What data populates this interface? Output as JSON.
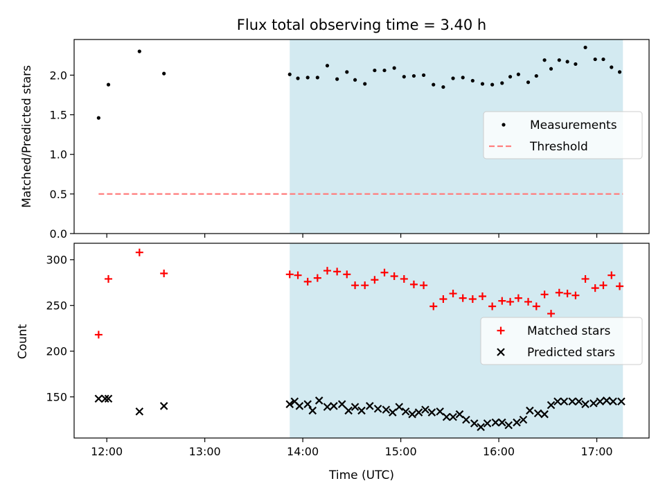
{
  "figure": {
    "title": "Flux total observing time = 3.40 h"
  },
  "colors": {
    "shade": "#d3eaf1",
    "measurement": "#000000",
    "threshold": "#ff7f7f",
    "matched": "#ff0000",
    "predicted": "#000000"
  },
  "chart_data": [
    {
      "type": "scatter",
      "xlabel": "",
      "ylabel": "Matched/Predicted stars",
      "xlim": [
        "11:40",
        "17:32"
      ],
      "ylim": [
        0,
        2.45
      ],
      "yticks": [
        "0.0",
        "0.5",
        "1.0",
        "1.5",
        "2.0"
      ],
      "ytick_values": [
        0,
        0.5,
        1.0,
        1.5,
        2.0
      ],
      "xticks": [
        "12:00",
        "13:00",
        "14:00",
        "15:00",
        "16:00",
        "17:00"
      ],
      "shaded_span": [
        "13:52",
        "17:16"
      ],
      "legend": {
        "placement": "center-right",
        "entries": [
          "Measurements",
          "Threshold"
        ]
      },
      "series": [
        {
          "name": "Measurements",
          "style": "dot",
          "x": [
            "11:55",
            "12:01",
            "12:20",
            "12:35",
            "13:52",
            "13:57",
            "14:03",
            "14:09",
            "14:15",
            "14:21",
            "14:27",
            "14:32",
            "14:38",
            "14:44",
            "14:50",
            "14:56",
            "15:02",
            "15:08",
            "15:14",
            "15:20",
            "15:26",
            "15:32",
            "15:38",
            "15:44",
            "15:50",
            "15:56",
            "16:02",
            "16:07",
            "16:12",
            "16:18",
            "16:23",
            "16:28",
            "16:32",
            "16:37",
            "16:42",
            "16:47",
            "16:53",
            "16:59",
            "17:04",
            "17:09",
            "17:14"
          ],
          "y": [
            1.46,
            1.88,
            2.3,
            2.02,
            2.01,
            1.96,
            1.97,
            1.97,
            2.12,
            1.95,
            2.04,
            1.94,
            1.89,
            2.06,
            2.06,
            2.09,
            1.98,
            1.99,
            2.0,
            1.88,
            1.85,
            1.96,
            1.97,
            1.93,
            1.89,
            1.88,
            1.9,
            1.98,
            2.01,
            1.91,
            1.99,
            2.19,
            2.08,
            2.19,
            2.17,
            2.14,
            2.35,
            2.2,
            2.2,
            2.1,
            2.04
          ]
        },
        {
          "name": "Threshold",
          "style": "dashed-line",
          "x": [
            "11:55",
            "17:16"
          ],
          "y": [
            0.5,
            0.5
          ]
        }
      ]
    },
    {
      "type": "scatter",
      "xlabel": "Time (UTC)",
      "ylabel": "Count",
      "xlim": [
        "11:40",
        "17:32"
      ],
      "ylim": [
        105,
        318
      ],
      "yticks": [
        "150",
        "200",
        "250",
        "300"
      ],
      "ytick_values": [
        150,
        200,
        250,
        300
      ],
      "xticks": [
        "12:00",
        "13:00",
        "14:00",
        "15:00",
        "16:00",
        "17:00"
      ],
      "shaded_span": [
        "13:52",
        "17:16"
      ],
      "legend": {
        "placement": "center-right",
        "entries": [
          "Matched stars",
          "Predicted stars"
        ]
      },
      "series": [
        {
          "name": "Matched stars",
          "style": "plus",
          "x": [
            "11:55",
            "12:01",
            "12:20",
            "12:35",
            "13:52",
            "13:57",
            "14:03",
            "14:09",
            "14:15",
            "14:21",
            "14:27",
            "14:32",
            "14:38",
            "14:44",
            "14:50",
            "14:56",
            "15:02",
            "15:08",
            "15:14",
            "15:20",
            "15:26",
            "15:32",
            "15:38",
            "15:44",
            "15:50",
            "15:56",
            "16:02",
            "16:07",
            "16:12",
            "16:18",
            "16:23",
            "16:28",
            "16:32",
            "16:37",
            "16:42",
            "16:47",
            "16:53",
            "16:59",
            "17:04",
            "17:09",
            "17:14"
          ],
          "y": [
            218,
            279,
            308,
            285,
            284,
            283,
            276,
            280,
            288,
            287,
            284,
            272,
            272,
            278,
            286,
            282,
            279,
            273,
            272,
            249,
            257,
            263,
            258,
            257,
            260,
            249,
            255,
            254,
            258,
            254,
            249,
            262,
            241,
            264,
            263,
            261,
            279,
            269,
            272,
            283,
            271
          ]
        },
        {
          "name": "Predicted stars",
          "style": "x",
          "x": [
            "11:55",
            "11:59",
            "12:01",
            "12:20",
            "12:35",
            "13:52",
            "13:55",
            "13:58",
            "14:03",
            "14:06",
            "14:10",
            "14:15",
            "14:19",
            "14:24",
            "14:28",
            "14:32",
            "14:36",
            "14:41",
            "14:46",
            "14:51",
            "14:55",
            "14:59",
            "15:03",
            "15:07",
            "15:11",
            "15:15",
            "15:19",
            "15:24",
            "15:28",
            "15:32",
            "15:36",
            "15:40",
            "15:45",
            "15:49",
            "15:53",
            "15:58",
            "16:02",
            "16:06",
            "16:11",
            "16:15",
            "16:19",
            "16:24",
            "16:28",
            "16:32",
            "16:36",
            "16:40",
            "16:45",
            "16:49",
            "16:53",
            "16:58",
            "17:02",
            "17:06",
            "17:10",
            "17:15"
          ],
          "y": [
            148,
            148,
            148,
            134,
            140,
            142,
            145,
            140,
            142,
            135,
            146,
            139,
            140,
            142,
            135,
            139,
            135,
            140,
            137,
            136,
            133,
            139,
            134,
            131,
            133,
            136,
            133,
            134,
            128,
            128,
            131,
            125,
            121,
            117,
            121,
            122,
            122,
            119,
            122,
            125,
            135,
            132,
            131,
            141,
            145,
            145,
            145,
            145,
            142,
            143,
            145,
            146,
            145,
            145
          ]
        }
      ]
    }
  ]
}
